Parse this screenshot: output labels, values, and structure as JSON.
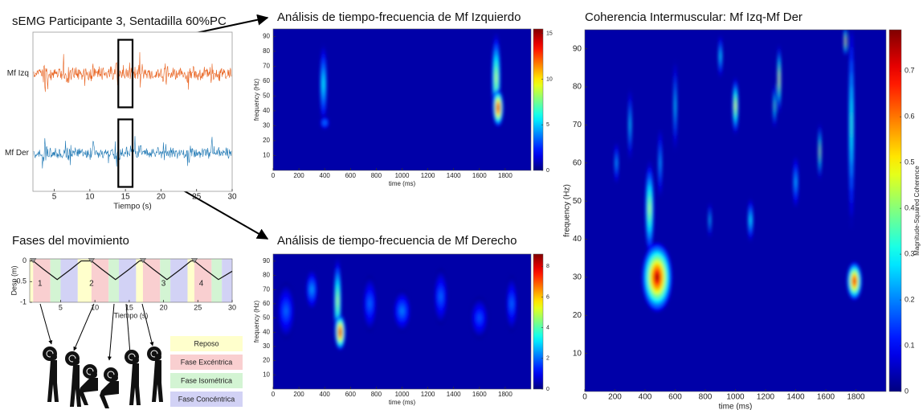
{
  "chart_data": [
    {
      "type": "signal",
      "title": "sEMG Participante 3, Sentadilla 60%PC",
      "x_label": "Tiempo (s)",
      "xlim": [
        2,
        30
      ],
      "xticks": [
        5,
        10,
        15,
        20,
        25,
        30
      ],
      "series": [
        {
          "name": "Mf Izq",
          "color": "#e8601c"
        },
        {
          "name": "Mf Der",
          "color": "#1f78b4"
        }
      ],
      "highlight_xlim": [
        14,
        16
      ]
    },
    {
      "type": "heatmap",
      "title": "Análisis de tiempo-frecuencia de Mf Izquierdo",
      "x_label": "time (ms)",
      "y_label": "frequency (Hz)",
      "xlim": [
        0,
        2000
      ],
      "xticks": [
        0,
        200,
        400,
        600,
        800,
        1000,
        1200,
        1400,
        1600,
        1800
      ],
      "ylim": [
        0,
        95
      ],
      "yticks": [
        10,
        20,
        30,
        40,
        50,
        60,
        70,
        80,
        90
      ],
      "clim": [
        0,
        15.5
      ],
      "cticks": [
        0,
        5,
        10,
        15
      ],
      "hotspots": [
        {
          "x": 390,
          "y": 58,
          "width": 60,
          "height": 55,
          "value": 6
        },
        {
          "x": 400,
          "y": 32,
          "width": 80,
          "height": 10,
          "value": 4
        },
        {
          "x": 1730,
          "y": 62,
          "width": 70,
          "height": 60,
          "value": 9
        },
        {
          "x": 1745,
          "y": 42,
          "width": 80,
          "height": 25,
          "value": 15
        }
      ]
    },
    {
      "type": "heatmap",
      "title": "Análisis de tiempo-frecuencia de Mf Derecho",
      "x_label": "time (ms)",
      "y_label": "frequency (Hz)",
      "xlim": [
        0,
        2000
      ],
      "xticks": [
        0,
        200,
        400,
        600,
        800,
        1000,
        1200,
        1400,
        1600,
        1800
      ],
      "ylim": [
        0,
        95
      ],
      "yticks": [
        10,
        20,
        30,
        40,
        50,
        60,
        70,
        80,
        90
      ],
      "clim": [
        0,
        8.8
      ],
      "cticks": [
        0,
        2,
        4,
        6,
        8
      ],
      "hotspots": [
        {
          "x": 100,
          "y": 55,
          "width": 150,
          "height": 40,
          "value": 2
        },
        {
          "x": 300,
          "y": 70,
          "width": 100,
          "height": 30,
          "value": 2.5
        },
        {
          "x": 750,
          "y": 60,
          "width": 120,
          "height": 40,
          "value": 2
        },
        {
          "x": 1000,
          "y": 55,
          "width": 150,
          "height": 30,
          "value": 2.2
        },
        {
          "x": 1300,
          "y": 65,
          "width": 120,
          "height": 40,
          "value": 2
        },
        {
          "x": 1600,
          "y": 50,
          "width": 150,
          "height": 30,
          "value": 1.8
        },
        {
          "x": 1850,
          "y": 60,
          "width": 100,
          "height": 40,
          "value": 2
        },
        {
          "x": 500,
          "y": 62,
          "width": 60,
          "height": 60,
          "value": 5
        },
        {
          "x": 520,
          "y": 40,
          "width": 80,
          "height": 25,
          "value": 8.5
        }
      ]
    },
    {
      "type": "heatmap",
      "title": "Coherencia Intermuscular: Mf Izq-Mf Der",
      "x_label": "time (ms)",
      "y_label": "frequency (Hz)",
      "xlim": [
        0,
        2000
      ],
      "xticks": [
        0,
        200,
        400,
        600,
        800,
        1000,
        1200,
        1400,
        1600,
        1800
      ],
      "ylim": [
        0,
        95
      ],
      "yticks": [
        10,
        20,
        30,
        40,
        50,
        60,
        70,
        80,
        90
      ],
      "clim": [
        0,
        0.79
      ],
      "cticks": [
        0,
        0.1,
        0.2,
        0.3,
        0.4,
        0.5,
        0.6,
        0.7
      ],
      "colorbar_label": "Magnitude-Squared Coherence",
      "hotspots": [
        {
          "x": 210,
          "y": 60,
          "width": 30,
          "height": 12,
          "value": 0.25
        },
        {
          "x": 300,
          "y": 70,
          "width": 25,
          "height": 20,
          "value": 0.3
        },
        {
          "x": 500,
          "y": 60,
          "width": 30,
          "height": 20,
          "value": 0.25
        },
        {
          "x": 600,
          "y": 75,
          "width": 25,
          "height": 25,
          "value": 0.3
        },
        {
          "x": 830,
          "y": 45,
          "width": 20,
          "height": 10,
          "value": 0.3
        },
        {
          "x": 900,
          "y": 88,
          "width": 30,
          "height": 12,
          "value": 0.3
        },
        {
          "x": 1100,
          "y": 45,
          "width": 40,
          "height": 12,
          "value": 0.3
        },
        {
          "x": 1400,
          "y": 55,
          "width": 40,
          "height": 15,
          "value": 0.25
        },
        {
          "x": 1770,
          "y": 70,
          "width": 40,
          "height": 55,
          "value": 0.35
        },
        {
          "x": 1260,
          "y": 75,
          "width": 20,
          "height": 12,
          "value": 0.4
        },
        {
          "x": 430,
          "y": 48,
          "width": 60,
          "height": 25,
          "value": 0.45
        },
        {
          "x": 1000,
          "y": 75,
          "width": 40,
          "height": 15,
          "value": 0.5
        },
        {
          "x": 1560,
          "y": 63,
          "width": 20,
          "height": 15,
          "value": 0.5
        },
        {
          "x": 1290,
          "y": 82,
          "width": 25,
          "height": 18,
          "value": 0.55
        },
        {
          "x": 1730,
          "y": 92,
          "width": 20,
          "height": 8,
          "value": 0.6
        },
        {
          "x": 480,
          "y": 30,
          "width": 200,
          "height": 18,
          "value": 0.76
        },
        {
          "x": 1790,
          "y": 29,
          "width": 100,
          "height": 10,
          "value": 0.72
        }
      ]
    },
    {
      "type": "line",
      "title": "Fases del movimiento",
      "x_label": "Tiempo (s)",
      "y_label": "Desp (m)",
      "xlim": [
        0.5,
        30
      ],
      "xticks": [
        5,
        10,
        15,
        20,
        25,
        30
      ],
      "ylim": [
        -1,
        0.05
      ],
      "yticks": [
        0,
        -0.5,
        -1
      ],
      "x": [
        0.5,
        1,
        2.5,
        4.5,
        6.5,
        8,
        9.5,
        11,
        13,
        15,
        16.5,
        17,
        18.5,
        20.5,
        22.5,
        24,
        24.5,
        26,
        28,
        30
      ],
      "values": [
        0,
        0,
        -0.2,
        -0.45,
        -0.2,
        0,
        0,
        -0.2,
        -0.45,
        -0.2,
        0,
        0,
        -0.2,
        -0.45,
        -0.2,
        0,
        0,
        -0.2,
        -0.45,
        -0.25
      ],
      "color": "#111111",
      "markers_x": [
        1,
        9.5,
        17,
        24.5
      ],
      "annotations": [
        {
          "text": "1",
          "x": 2,
          "y": -0.55
        },
        {
          "text": "2",
          "x": 9.5,
          "y": -0.55
        },
        {
          "text": "3",
          "x": 20,
          "y": -0.55
        },
        {
          "text": "4",
          "x": 25.5,
          "y": -0.55
        }
      ],
      "phases": [
        {
          "name": "Reposo",
          "color": "#ffffcc"
        },
        {
          "name": "Fase Excéntrica",
          "color": "#f9cfd0"
        },
        {
          "name": "Fase Isométrica",
          "color": "#d3f4d3"
        },
        {
          "name": "Fase Concéntrica",
          "color": "#d2d2f5"
        }
      ],
      "segments": [
        {
          "phase": 0,
          "start": 0.5,
          "end": 1
        },
        {
          "phase": 1,
          "start": 1,
          "end": 3.5
        },
        {
          "phase": 2,
          "start": 3.5,
          "end": 5
        },
        {
          "phase": 3,
          "start": 5,
          "end": 7.5
        },
        {
          "phase": 0,
          "start": 7.5,
          "end": 9.5
        },
        {
          "phase": 1,
          "start": 9.5,
          "end": 12
        },
        {
          "phase": 2,
          "start": 12,
          "end": 13.5
        },
        {
          "phase": 3,
          "start": 13.5,
          "end": 16
        },
        {
          "phase": 0,
          "start": 16,
          "end": 17
        },
        {
          "phase": 1,
          "start": 17,
          "end": 19.5
        },
        {
          "phase": 2,
          "start": 19.5,
          "end": 21
        },
        {
          "phase": 3,
          "start": 21,
          "end": 23.5
        },
        {
          "phase": 0,
          "start": 23.5,
          "end": 24.5
        },
        {
          "phase": 1,
          "start": 24.5,
          "end": 27
        },
        {
          "phase": 2,
          "start": 27,
          "end": 28.5
        },
        {
          "phase": 3,
          "start": 28.5,
          "end": 30
        }
      ]
    }
  ]
}
